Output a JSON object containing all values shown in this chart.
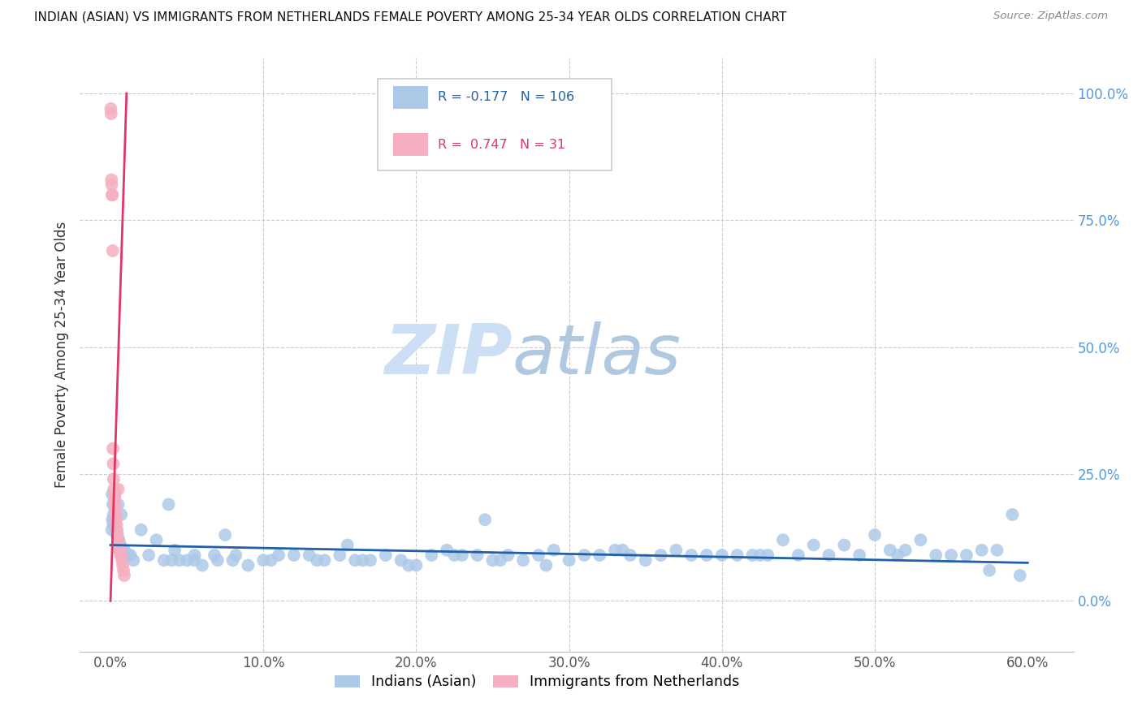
{
  "title": "INDIAN (ASIAN) VS IMMIGRANTS FROM NETHERLANDS FEMALE POVERTY AMONG 25-34 YEAR OLDS CORRELATION CHART",
  "source": "Source: ZipAtlas.com",
  "ylabel": "Female Poverty Among 25-34 Year Olds",
  "blue_R": -0.177,
  "blue_N": 106,
  "pink_R": 0.747,
  "pink_N": 31,
  "blue_color": "#adc9e8",
  "pink_color": "#f5afc0",
  "blue_line_color": "#2060a8",
  "pink_line_color": "#e03565",
  "grid_color": "#cccccc",
  "title_color": "#111111",
  "right_axis_color": "#5599dd",
  "legend_text_blue_color": "#2060a8",
  "legend_text_pink_color": "#e03565",
  "watermark_zip_color": "#c8dff5",
  "watermark_atlas_color": "#b0c8e0",
  "legend_label_blue": "Indians (Asian)",
  "legend_label_pink": "Immigrants from Netherlands",
  "xlim_pct": [
    0.0,
    60.0
  ],
  "ylim_pct": [
    0.0,
    100.0
  ],
  "x_ticks_pct": [
    0.0,
    10.0,
    20.0,
    30.0,
    40.0,
    50.0,
    60.0
  ],
  "y_ticks_pct": [
    0.0,
    25.0,
    50.0,
    75.0,
    100.0
  ],
  "blue_scatter_x": [
    0.1,
    0.15,
    0.2,
    0.25,
    0.3,
    0.35,
    0.4,
    0.45,
    0.5,
    0.55,
    0.6,
    0.65,
    0.7,
    0.8,
    0.9,
    1.0,
    1.1,
    1.2,
    1.3,
    1.5,
    2.0,
    2.5,
    3.0,
    3.5,
    4.0,
    4.5,
    5.0,
    5.5,
    6.0,
    7.0,
    8.0,
    9.0,
    10.0,
    11.0,
    12.0,
    13.0,
    14.0,
    15.0,
    16.0,
    17.0,
    18.0,
    19.0,
    20.0,
    21.0,
    22.0,
    23.0,
    24.0,
    25.0,
    26.0,
    27.0,
    28.0,
    29.0,
    30.0,
    31.0,
    32.0,
    33.0,
    34.0,
    35.0,
    36.0,
    37.0,
    38.0,
    39.0,
    40.0,
    41.0,
    42.0,
    43.0,
    44.0,
    45.0,
    46.0,
    47.0,
    48.0,
    49.0,
    50.0,
    51.0,
    52.0,
    53.0,
    54.0,
    55.0,
    56.0,
    57.0,
    58.0,
    59.0,
    4.2,
    5.5,
    6.8,
    8.2,
    10.5,
    13.5,
    16.5,
    19.5,
    22.5,
    25.5,
    28.5,
    3.8,
    7.5,
    15.5,
    24.5,
    33.5,
    42.5,
    51.5,
    57.5,
    0.3,
    0.5,
    0.7,
    0.08,
    0.12,
    0.18,
    59.5
  ],
  "blue_scatter_y": [
    21,
    19,
    17,
    16,
    15,
    14,
    13,
    13,
    12,
    12,
    11,
    11,
    10,
    10,
    10,
    9,
    9,
    9,
    9,
    8,
    14,
    9,
    12,
    8,
    8,
    8,
    8,
    8,
    7,
    8,
    8,
    7,
    8,
    9,
    9,
    9,
    8,
    9,
    8,
    8,
    9,
    8,
    7,
    9,
    10,
    9,
    9,
    8,
    9,
    8,
    9,
    10,
    8,
    9,
    9,
    10,
    9,
    8,
    9,
    10,
    9,
    9,
    9,
    9,
    9,
    9,
    12,
    9,
    11,
    9,
    11,
    9,
    13,
    10,
    10,
    12,
    9,
    9,
    9,
    10,
    10,
    17,
    10,
    9,
    9,
    9,
    8,
    8,
    8,
    7,
    9,
    8,
    7,
    19,
    13,
    11,
    16,
    10,
    9,
    9,
    6,
    21,
    19,
    17,
    14,
    16,
    15,
    5
  ],
  "pink_scatter_x": [
    0.02,
    0.04,
    0.06,
    0.08,
    0.1,
    0.12,
    0.14,
    0.16,
    0.18,
    0.2,
    0.22,
    0.25,
    0.28,
    0.3,
    0.33,
    0.35,
    0.38,
    0.4,
    0.43,
    0.45,
    0.48,
    0.5,
    0.55,
    0.6,
    0.65,
    0.7,
    0.75,
    0.8,
    0.85,
    0.9,
    0.5
  ],
  "pink_scatter_y": [
    97,
    96,
    83,
    82,
    80,
    80,
    69,
    30,
    27,
    24,
    22,
    21,
    20,
    19,
    18,
    17,
    16,
    15,
    14,
    13,
    12,
    11,
    10,
    10,
    9,
    9,
    8,
    7,
    6,
    5,
    22
  ],
  "blue_trend_x0_pct": 0.0,
  "blue_trend_x1_pct": 60.0,
  "blue_trend_y0_pct": 11.0,
  "blue_trend_y1_pct": 7.5,
  "pink_trend_x0_pct": 0.0,
  "pink_trend_x1_pct": 1.05,
  "pink_trend_y0_pct": 0.0,
  "pink_trend_y1_pct": 100.0
}
